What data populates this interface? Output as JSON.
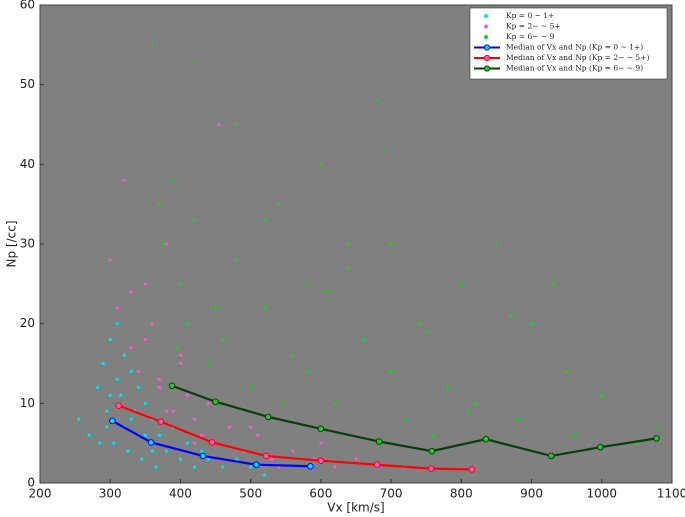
{
  "chart_data": {
    "type": "scatter",
    "xlabel": "Vx [km/s]",
    "ylabel": "Np [/cc]",
    "xlim": [
      200,
      1100
    ],
    "ylim": [
      0,
      60
    ],
    "xticks": [
      200,
      300,
      400,
      500,
      600,
      700,
      800,
      900,
      1000,
      1100
    ],
    "yticks": [
      0,
      10,
      20,
      30,
      40,
      50,
      60
    ],
    "legend": "upper right",
    "series": [
      {
        "name": "Kp = 0 ~ 1+",
        "mode": "markers",
        "color": "#00e5ee",
        "x": [
          255,
          270,
          282,
          290,
          295,
          300,
          305,
          310,
          315,
          320,
          325,
          330,
          335,
          340,
          345,
          350,
          355,
          360,
          365,
          370,
          380,
          390,
          400,
          410,
          420,
          430,
          440,
          460,
          480,
          500,
          520,
          300,
          310,
          320,
          330,
          285,
          295,
          340,
          350,
          360
        ],
        "values": [
          8,
          6,
          12,
          15,
          9,
          18,
          5,
          20,
          11,
          7,
          4,
          14,
          9,
          6,
          3,
          10,
          5,
          8,
          2,
          6,
          4,
          7,
          3,
          5,
          2,
          4,
          3,
          2,
          3,
          2,
          1,
          11,
          13,
          16,
          8,
          5,
          7,
          12,
          6,
          4
        ]
      },
      {
        "name": "Kp = 2− ~ 5+",
        "mode": "markers",
        "color": "#f060c8",
        "x": [
          300,
          310,
          320,
          330,
          340,
          350,
          360,
          370,
          380,
          390,
          400,
          410,
          420,
          430,
          440,
          450,
          470,
          490,
          510,
          530,
          560,
          590,
          620,
          650,
          680,
          720,
          330,
          350,
          370,
          400,
          455,
          380,
          420,
          500,
          540,
          600
        ],
        "values": [
          28,
          22,
          38,
          17,
          14,
          25,
          20,
          12,
          30,
          9,
          15,
          11,
          8,
          6,
          10,
          5,
          7,
          4,
          6,
          3,
          4,
          3,
          2,
          3,
          2,
          2,
          24,
          18,
          13,
          16,
          45,
          9,
          5,
          7,
          2,
          5
        ]
      },
      {
        "name": "Kp = 6− ~ 9",
        "mode": "markers",
        "color": "#22cc22",
        "x": [
          360,
          375,
          390,
          400,
          410,
          420,
          440,
          460,
          480,
          500,
          520,
          540,
          560,
          580,
          600,
          620,
          640,
          660,
          680,
          700,
          720,
          740,
          760,
          780,
          800,
          820,
          850,
          880,
          900,
          930,
          960,
          1000,
          1050,
          1080,
          370,
          420,
          450,
          520,
          580,
          640,
          690,
          750,
          810,
          870,
          950,
          395,
          480,
          545,
          610,
          700
        ],
        "values": [
          55,
          30,
          38,
          25,
          20,
          33,
          15,
          18,
          28,
          12,
          22,
          35,
          16,
          25,
          40,
          10,
          30,
          18,
          48,
          14,
          8,
          20,
          6,
          12,
          25,
          10,
          30,
          8,
          20,
          25,
          6,
          11,
          5,
          7,
          35,
          53,
          22,
          33,
          14,
          27,
          42,
          19,
          9,
          21,
          14,
          17,
          45,
          10,
          24,
          30
        ]
      },
      {
        "name": "Median of Vx and Np (Kp = 0 ~ 1+)",
        "mode": "lines+markers",
        "color": "#0000ff",
        "marker_color": "#00e5ee",
        "x": [
          303,
          358,
          432,
          508,
          585
        ],
        "values": [
          7.8,
          5.1,
          3.4,
          2.3,
          2.1
        ]
      },
      {
        "name": "Median of Vx and Np (Kp = 2− ~ 5+)",
        "mode": "lines+markers",
        "color": "#ff0000",
        "marker_color": "#f060c8",
        "x": [
          312,
          372,
          445,
          522,
          600,
          680,
          757,
          815
        ],
        "values": [
          9.7,
          7.7,
          5.1,
          3.4,
          2.8,
          2.3,
          1.8,
          1.7
        ]
      },
      {
        "name": "Median of Vx and Np (Kp = 6− ~ 9)",
        "mode": "lines+markers",
        "color": "#0a3d0a",
        "marker_color": "#22cc22",
        "x": [
          388,
          450,
          525,
          600,
          683,
          758,
          835,
          928,
          998,
          1078
        ],
        "values": [
          12.2,
          10.2,
          8.3,
          6.8,
          5.2,
          4.0,
          5.5,
          3.4,
          4.5,
          5.6
        ]
      }
    ]
  }
}
